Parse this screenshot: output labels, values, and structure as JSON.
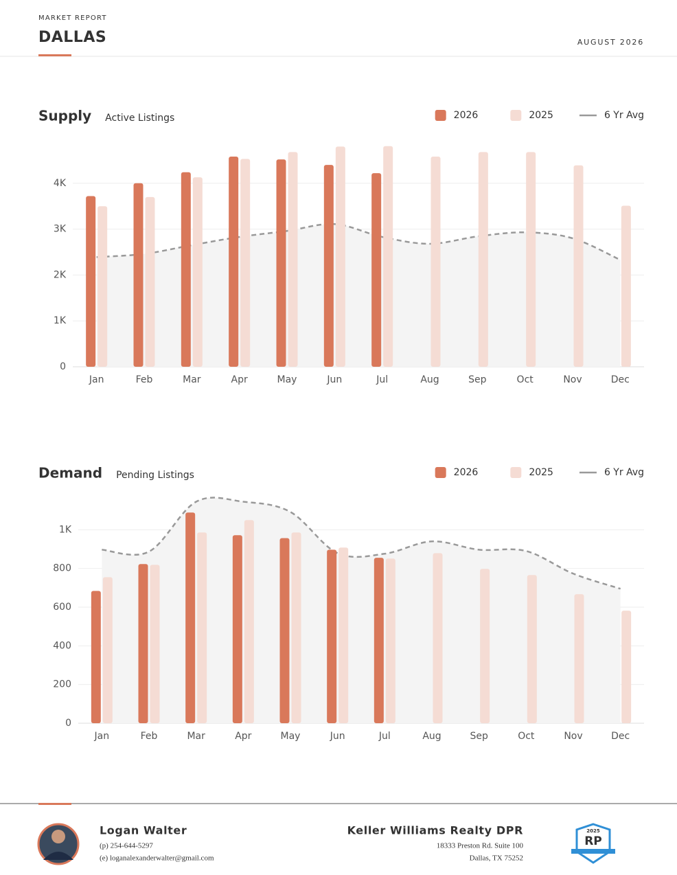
{
  "header": {
    "kicker": "MARKET REPORT",
    "title": "DALLAS",
    "date": "AUGUST 2026"
  },
  "chart_data": [
    {
      "type": "bar",
      "title": "Supply",
      "subtitle": "Active Listings",
      "categories": [
        "Jan",
        "Feb",
        "Mar",
        "Apr",
        "May",
        "Jun",
        "Jul",
        "Aug",
        "Sep",
        "Oct",
        "Nov",
        "Dec"
      ],
      "series": [
        {
          "name": "2026",
          "color": "#d9785a",
          "values": [
            3720,
            4000,
            4240,
            4580,
            4520,
            4400,
            4220,
            null,
            null,
            null,
            null,
            null
          ]
        },
        {
          "name": "2025",
          "color": "#f5dcd4",
          "values": [
            3500,
            3700,
            4130,
            4530,
            4680,
            4800,
            4810,
            4580,
            4680,
            4680,
            4390,
            3510
          ]
        },
        {
          "name": "6 Yr Avg",
          "type": "line",
          "color": "#999999",
          "values": [
            2390,
            2460,
            2650,
            2830,
            2960,
            3110,
            2830,
            2680,
            2840,
            2930,
            2800,
            2330
          ]
        }
      ],
      "ylim": [
        0,
        5000
      ],
      "yticks": [
        0,
        {
          "value": 1000,
          "label": "1K"
        },
        {
          "value": 2000,
          "label": "2K"
        },
        {
          "value": 3000,
          "label": "3K"
        },
        {
          "value": 4000,
          "label": "4K"
        }
      ],
      "grid": true,
      "legend": "top-right"
    },
    {
      "type": "bar",
      "title": "Demand",
      "subtitle": "Pending Listings",
      "categories": [
        "Jan",
        "Feb",
        "Mar",
        "Apr",
        "May",
        "Jun",
        "Jul",
        "Aug",
        "Sep",
        "Oct",
        "Nov",
        "Dec"
      ],
      "series": [
        {
          "name": "2026",
          "color": "#d9785a",
          "values": [
            684,
            823,
            1089,
            972,
            957,
            897,
            855,
            null,
            null,
            null,
            null,
            null
          ]
        },
        {
          "name": "2025",
          "color": "#f5dcd4",
          "values": [
            755,
            819,
            986,
            1050,
            986,
            908,
            851,
            879,
            798,
            766,
            667,
            582
          ]
        },
        {
          "name": "6 Yr Avg",
          "type": "line",
          "color": "#999999",
          "values": [
            897,
            887,
            1145,
            1145,
            1092,
            879,
            876,
            940,
            897,
            890,
            773,
            695
          ]
        }
      ],
      "ylim": [
        0,
        1200
      ],
      "yticks": [
        0,
        200,
        400,
        600,
        800,
        {
          "value": 1000,
          "label": "1K"
        }
      ],
      "grid": true,
      "legend": "top-right"
    }
  ],
  "footer": {
    "agent": "Logan Walter",
    "phone": "(p) 254-644-5297",
    "email": "(e) loganalexanderwalter@gmail.com",
    "company": "Keller Williams Realty DPR",
    "address1": "18333 Preston Rd. Suite 100",
    "address2": "Dallas, TX 75252",
    "badge_year": "2025",
    "badge_logo": "RP"
  }
}
